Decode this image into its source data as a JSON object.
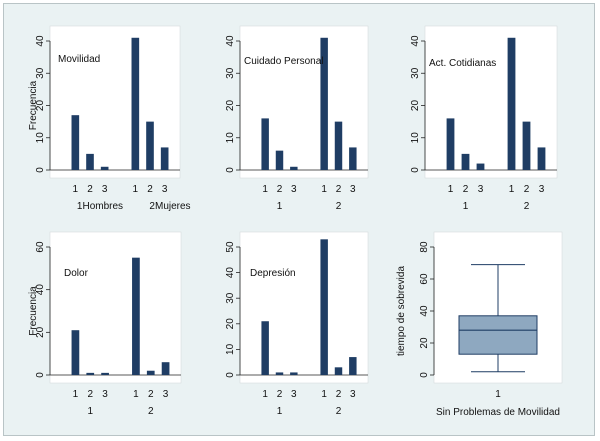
{
  "colors": {
    "bar": "#1f3d64",
    "box_fill": "#8ea8c0",
    "box_stroke": "#1f3d64",
    "panel_bg": "#ffffff",
    "figure_bg": "#eaf2f3"
  },
  "chart_data": [
    {
      "type": "bar",
      "title": "Movilidad",
      "ylabel": "Frecuencia",
      "ylim": [
        0,
        40
      ],
      "yticks": [
        "0",
        "10",
        "20",
        "30",
        "40"
      ],
      "categories": [
        "1",
        "2",
        "3",
        "1",
        "2",
        "3"
      ],
      "values": [
        17,
        5,
        1,
        41,
        15,
        7
      ],
      "group_labels": [
        "1Hombres",
        "2Mujeres"
      ]
    },
    {
      "type": "bar",
      "title": "Cuidado Personal",
      "ylabel": "",
      "ylim": [
        0,
        40
      ],
      "yticks": [
        "0",
        "10",
        "20",
        "30",
        "40"
      ],
      "categories": [
        "1",
        "2",
        "3",
        "1",
        "2",
        "3"
      ],
      "values": [
        16,
        6,
        1,
        41,
        15,
        7
      ],
      "group_labels": [
        "1",
        "2"
      ]
    },
    {
      "type": "bar",
      "title": "Act. Cotidianas",
      "ylabel": "",
      "ylim": [
        0,
        40
      ],
      "yticks": [
        "0",
        "10",
        "20",
        "30",
        "40"
      ],
      "categories": [
        "1",
        "2",
        "3",
        "1",
        "2",
        "3"
      ],
      "values": [
        16,
        5,
        2,
        41,
        15,
        7
      ],
      "group_labels": [
        "1",
        "2"
      ]
    },
    {
      "type": "bar",
      "title": "Dolor",
      "ylabel": "Frecuencia",
      "ylim": [
        0,
        60
      ],
      "yticks": [
        "0",
        "20",
        "40",
        "60"
      ],
      "categories": [
        "1",
        "2",
        "3",
        "1",
        "2",
        "3"
      ],
      "values": [
        21,
        1,
        1,
        55,
        2,
        6
      ],
      "group_labels": [
        "1",
        "2"
      ]
    },
    {
      "type": "bar",
      "title": "Depresión",
      "ylabel": "",
      "ylim": [
        0,
        50
      ],
      "yticks": [
        "0",
        "10",
        "20",
        "30",
        "40",
        "50"
      ],
      "categories": [
        "1",
        "2",
        "3",
        "1",
        "2",
        "3"
      ],
      "values": [
        21,
        1,
        1,
        53,
        3,
        7
      ],
      "group_labels": [
        "1",
        "2"
      ]
    },
    {
      "type": "box",
      "ylabel": "tiempo de sobrevida",
      "xlabel": "Sin Problemas de Movilidad",
      "categories": [
        "1"
      ],
      "ylim": [
        0,
        80
      ],
      "yticks": [
        "0",
        "20",
        "40",
        "60",
        "80"
      ],
      "box": {
        "min": 2,
        "q1": 13,
        "median": 28,
        "q3": 37,
        "max": 69
      }
    }
  ]
}
